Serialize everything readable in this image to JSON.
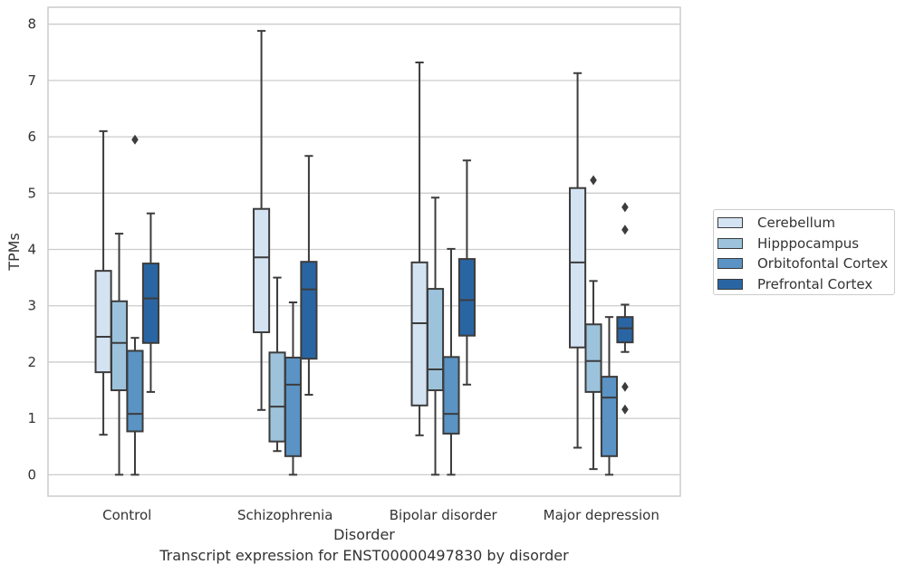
{
  "chart_data": {
    "type": "box",
    "title": "Transcript expression for ENST00000497830 by disorder",
    "xlabel": "Disorder",
    "ylabel": "TPMs",
    "ylim": [
      -0.38,
      8.3
    ],
    "yticks": [
      "0",
      "1",
      "2",
      "3",
      "4",
      "5",
      "6",
      "7",
      "8"
    ],
    "grid": "horizontal",
    "legend_position": "right",
    "categories": [
      "Control",
      "Schizophrenia",
      "Bipolar disorder",
      "Major depression"
    ],
    "series": [
      {
        "name": "Cerebellum",
        "color": "#d4e3f2",
        "boxes": [
          {
            "whislo": 0.71,
            "q1": 1.82,
            "med": 2.45,
            "q3": 3.62,
            "whishi": 6.1,
            "fliers": []
          },
          {
            "whislo": 1.15,
            "q1": 2.53,
            "med": 3.86,
            "q3": 4.72,
            "whishi": 7.88,
            "fliers": []
          },
          {
            "whislo": 0.7,
            "q1": 1.23,
            "med": 2.69,
            "q3": 3.77,
            "whishi": 7.32,
            "fliers": []
          },
          {
            "whislo": 0.48,
            "q1": 2.26,
            "med": 3.77,
            "q3": 5.09,
            "whishi": 7.13,
            "fliers": []
          }
        ]
      },
      {
        "name": "Hipppocampus",
        "color": "#9cc3db",
        "boxes": [
          {
            "whislo": 0.0,
            "q1": 1.5,
            "med": 2.34,
            "q3": 3.08,
            "whishi": 4.28,
            "fliers": []
          },
          {
            "whislo": 0.42,
            "q1": 0.59,
            "med": 1.21,
            "q3": 2.17,
            "whishi": 3.5,
            "fliers": []
          },
          {
            "whislo": 0.0,
            "q1": 1.5,
            "med": 1.87,
            "q3": 3.3,
            "whishi": 4.92,
            "fliers": []
          },
          {
            "whislo": 0.1,
            "q1": 1.47,
            "med": 2.02,
            "q3": 2.67,
            "whishi": 3.44,
            "fliers": [
              5.23
            ]
          }
        ]
      },
      {
        "name": "Orbitofontal Cortex",
        "color": "#5a93c4",
        "boxes": [
          {
            "whislo": 0.0,
            "q1": 0.77,
            "med": 1.08,
            "q3": 2.2,
            "whishi": 2.43,
            "fliers": [
              5.95
            ]
          },
          {
            "whislo": 0.0,
            "q1": 0.33,
            "med": 1.6,
            "q3": 2.08,
            "whishi": 3.06,
            "fliers": []
          },
          {
            "whislo": 0.0,
            "q1": 0.73,
            "med": 1.08,
            "q3": 2.09,
            "whishi": 4.01,
            "fliers": []
          },
          {
            "whislo": 0.0,
            "q1": 0.33,
            "med": 1.37,
            "q3": 1.74,
            "whishi": 2.8,
            "fliers": []
          }
        ]
      },
      {
        "name": "Prefrontal Cortex",
        "color": "#2a65a3",
        "boxes": [
          {
            "whislo": 1.47,
            "q1": 2.34,
            "med": 3.13,
            "q3": 3.75,
            "whishi": 4.64,
            "fliers": []
          },
          {
            "whislo": 1.42,
            "q1": 2.06,
            "med": 3.29,
            "q3": 3.78,
            "whishi": 5.66,
            "fliers": []
          },
          {
            "whislo": 1.6,
            "q1": 2.47,
            "med": 3.1,
            "q3": 3.83,
            "whishi": 5.58,
            "fliers": []
          },
          {
            "whislo": 2.18,
            "q1": 2.35,
            "med": 2.6,
            "q3": 2.8,
            "whishi": 3.02,
            "fliers": [
              4.75,
              4.35,
              1.56,
              1.16
            ]
          }
        ]
      }
    ]
  }
}
